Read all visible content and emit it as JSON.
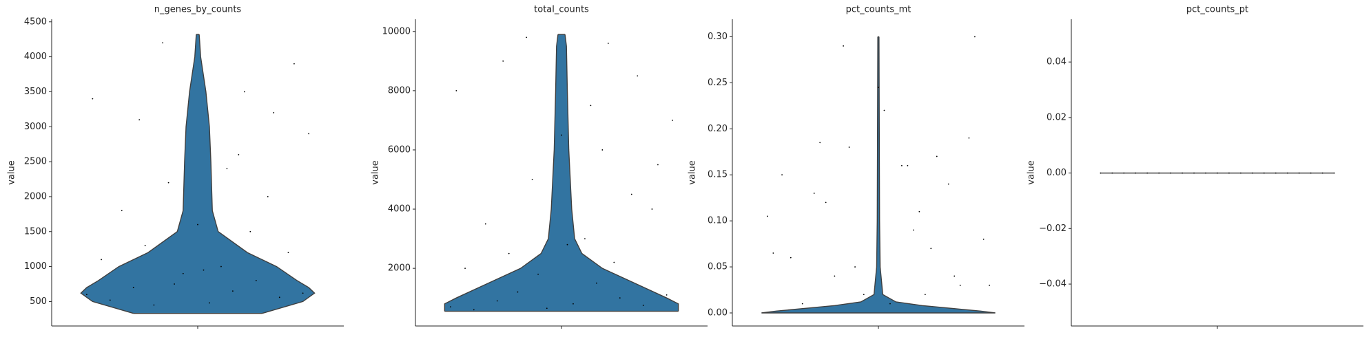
{
  "chart_data": [
    {
      "type": "violin",
      "title": "n_genes_by_counts",
      "ylabel": "value",
      "ylim": [
        150,
        4537
      ],
      "yticks": [
        500,
        1000,
        1500,
        2000,
        2500,
        3000,
        3500,
        4000,
        4500
      ],
      "color": "#3274a1",
      "profile": {
        "y": [
          330,
          500,
          620,
          700,
          800,
          1000,
          1200,
          1500,
          1800,
          2500,
          3000,
          3500,
          4000,
          4320
        ],
        "halfwidth": [
          0.22,
          0.36,
          0.4,
          0.38,
          0.34,
          0.27,
          0.17,
          0.07,
          0.05,
          0.045,
          0.04,
          0.028,
          0.01,
          0.005
        ]
      },
      "points": {
        "x": [
          -0.38,
          -0.3,
          -0.22,
          -0.15,
          -0.05,
          0.04,
          0.12,
          0.2,
          0.28,
          0.36,
          -0.33,
          -0.18,
          -0.08,
          0.08,
          0.18,
          0.31,
          -0.26,
          -0.1,
          0.02,
          0.14,
          0.24,
          0.38,
          -0.36,
          -0.2,
          0.0,
          0.16,
          0.33,
          -0.12,
          0.1,
          0.26
        ],
        "y": [
          600,
          520,
          700,
          450,
          900,
          480,
          650,
          800,
          560,
          620,
          1100,
          1300,
          750,
          1000,
          1500,
          1200,
          1800,
          2200,
          950,
          2600,
          2000,
          2900,
          3400,
          3100,
          1600,
          3500,
          3900,
          4200,
          2400,
          3200
        ]
      }
    },
    {
      "type": "violin",
      "title": "total_counts",
      "ylabel": "value",
      "ylim": [
        52,
        10413
      ],
      "yticks": [
        2000,
        4000,
        6000,
        8000,
        10000
      ],
      "color": "#3274a1",
      "profile": {
        "y": [
          550,
          800,
          1000,
          1500,
          2000,
          2500,
          3000,
          4000,
          5000,
          6000,
          8000,
          9500,
          9900
        ],
        "halfwidth": [
          0.4,
          0.4,
          0.36,
          0.25,
          0.14,
          0.07,
          0.045,
          0.035,
          0.03,
          0.025,
          0.02,
          0.017,
          0.012
        ]
      },
      "points": {
        "x": [
          -0.38,
          -0.3,
          -0.22,
          -0.15,
          -0.05,
          0.04,
          0.12,
          0.2,
          0.28,
          0.36,
          -0.33,
          -0.18,
          -0.08,
          0.08,
          0.18,
          0.31,
          -0.26,
          -0.1,
          0.02,
          0.14,
          0.24,
          0.38,
          -0.36,
          -0.2,
          0.0,
          0.16,
          0.33,
          -0.12,
          0.1,
          0.26
        ],
        "y": [
          700,
          600,
          900,
          1200,
          650,
          800,
          1500,
          1000,
          750,
          1100,
          2000,
          2500,
          1800,
          3000,
          2200,
          4000,
          3500,
          5000,
          2800,
          6000,
          4500,
          7000,
          8000,
          9000,
          6500,
          9600,
          5500,
          9800,
          7500,
          8500
        ]
      }
    },
    {
      "type": "violin",
      "title": "pct_counts_mt",
      "ylabel": "value",
      "ylim": [
        -0.0142,
        0.319
      ],
      "yticks": [
        {
          "value": 0,
          "label": "0.00"
        },
        {
          "value": 0.05,
          "label": "0.05"
        },
        {
          "value": 0.1,
          "label": "0.10"
        },
        {
          "value": 0.15,
          "label": "0.15"
        },
        {
          "value": 0.2,
          "label": "0.20"
        },
        {
          "value": 0.25,
          "label": "0.25"
        },
        {
          "value": 0.3,
          "label": "0.30"
        }
      ],
      "color": "#3274a1",
      "profile": {
        "y": [
          0,
          0.002,
          0.005,
          0.008,
          0.012,
          0.02,
          0.05,
          0.1,
          0.2,
          0.3
        ],
        "halfwidth": [
          0.4,
          0.35,
          0.25,
          0.15,
          0.06,
          0.015,
          0.006,
          0.004,
          0.003,
          0.002
        ]
      },
      "points": {
        "x": [
          -0.38,
          -0.3,
          -0.22,
          -0.15,
          -0.05,
          0.04,
          0.12,
          0.2,
          0.28,
          0.36,
          -0.33,
          -0.18,
          -0.08,
          0.08,
          0.18,
          0.31,
          -0.26,
          -0.1,
          0.02,
          0.14,
          0.24,
          0.38,
          -0.36,
          -0.2,
          0.0,
          0.16,
          0.33,
          -0.12,
          0.1,
          0.26
        ],
        "y": [
          0.105,
          0.06,
          0.13,
          0.04,
          0.02,
          0.01,
          0.09,
          0.17,
          0.03,
          0.08,
          0.15,
          0.12,
          0.05,
          0.16,
          0.07,
          0.19,
          0.01,
          0.18,
          0.22,
          0.11,
          0.14,
          0.03,
          0.065,
          0.185,
          0.245,
          0.02,
          0.3,
          0.29,
          0.16,
          0.04
        ]
      }
    },
    {
      "type": "violin",
      "title": "pct_counts_pt",
      "ylabel": "value",
      "ylim": [
        -0.0551,
        0.0554
      ],
      "yticks": [
        {
          "value": -0.04,
          "label": "−0.04"
        },
        {
          "value": -0.02,
          "label": "−0.02"
        },
        {
          "value": 0,
          "label": "0.00"
        },
        {
          "value": 0.02,
          "label": "0.02"
        },
        {
          "value": 0.04,
          "label": "0.04"
        }
      ],
      "color": "#3274a1",
      "profile": {
        "y": [
          0
        ],
        "halfwidth": [
          0.4
        ]
      },
      "points": {
        "x": [
          -0.4,
          -0.36,
          -0.32,
          -0.28,
          -0.24,
          -0.2,
          -0.16,
          -0.12,
          -0.08,
          -0.04,
          0,
          0.04,
          0.08,
          0.12,
          0.16,
          0.2,
          0.24,
          0.28,
          0.32,
          0.36,
          0.4
        ],
        "y": [
          0,
          0,
          0,
          0,
          0,
          0,
          0,
          0,
          0,
          0,
          0,
          0,
          0,
          0,
          0,
          0,
          0,
          0,
          0,
          0,
          0
        ]
      }
    }
  ]
}
